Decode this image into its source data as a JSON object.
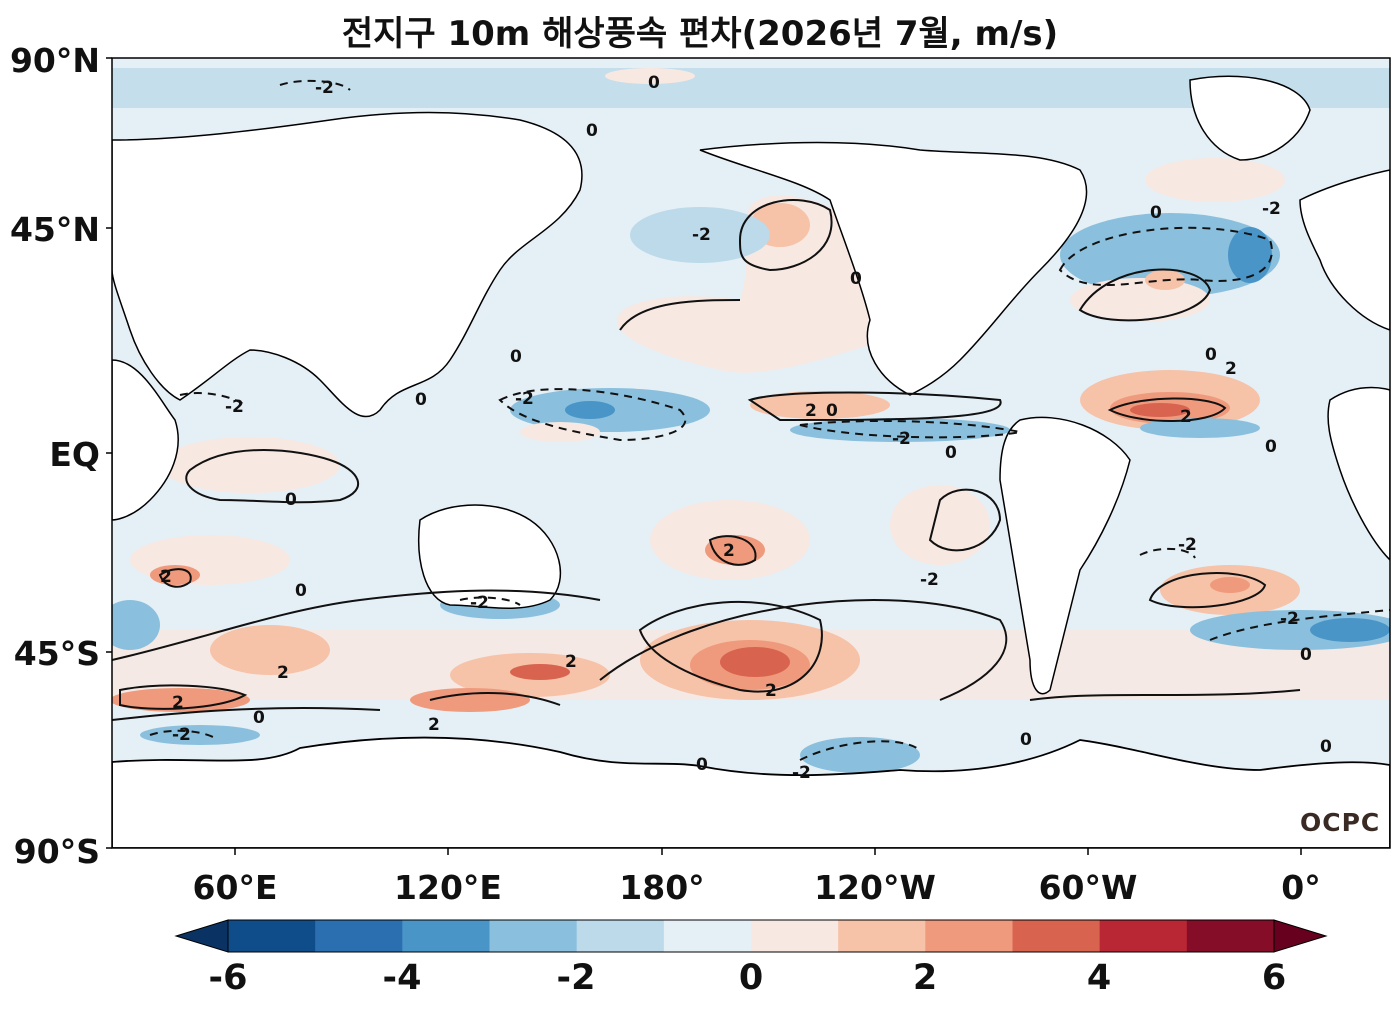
{
  "title": "전지구 10m 해상풍속 편차(2026년 7월, m/s)",
  "logo": "OCPC",
  "y_axis": {
    "labels": [
      "90°N",
      "45°N",
      "EQ",
      "45°S",
      "90°S"
    ]
  },
  "x_axis": {
    "labels": [
      "60°E",
      "120°E",
      "180°",
      "120°W",
      "60°W",
      "0°"
    ]
  },
  "colorbar": {
    "tick_labels": [
      "-6",
      "-4",
      "-2",
      "0",
      "2",
      "4",
      "6"
    ],
    "levels": [
      -6,
      -5,
      -4,
      -3,
      -2,
      -1,
      0,
      1,
      2,
      3,
      4,
      5,
      6
    ],
    "colors": [
      "#0f4c8a",
      "#2b6fb0",
      "#4a95c8",
      "#8ac0dd",
      "#bcdaea",
      "#e5eff6",
      "#f8e8e2",
      "#f6c2a8",
      "#ef9a7c",
      "#d8634f",
      "#b82733",
      "#860d27"
    ],
    "extend_low_color": "#0a3262",
    "extend_high_color": "#67001f"
  },
  "contour_labels": [
    "0",
    "-2",
    "2"
  ],
  "colors": {
    "land": "#ffffff",
    "ocean_base": "#e5eff6",
    "coast": "#000000"
  }
}
